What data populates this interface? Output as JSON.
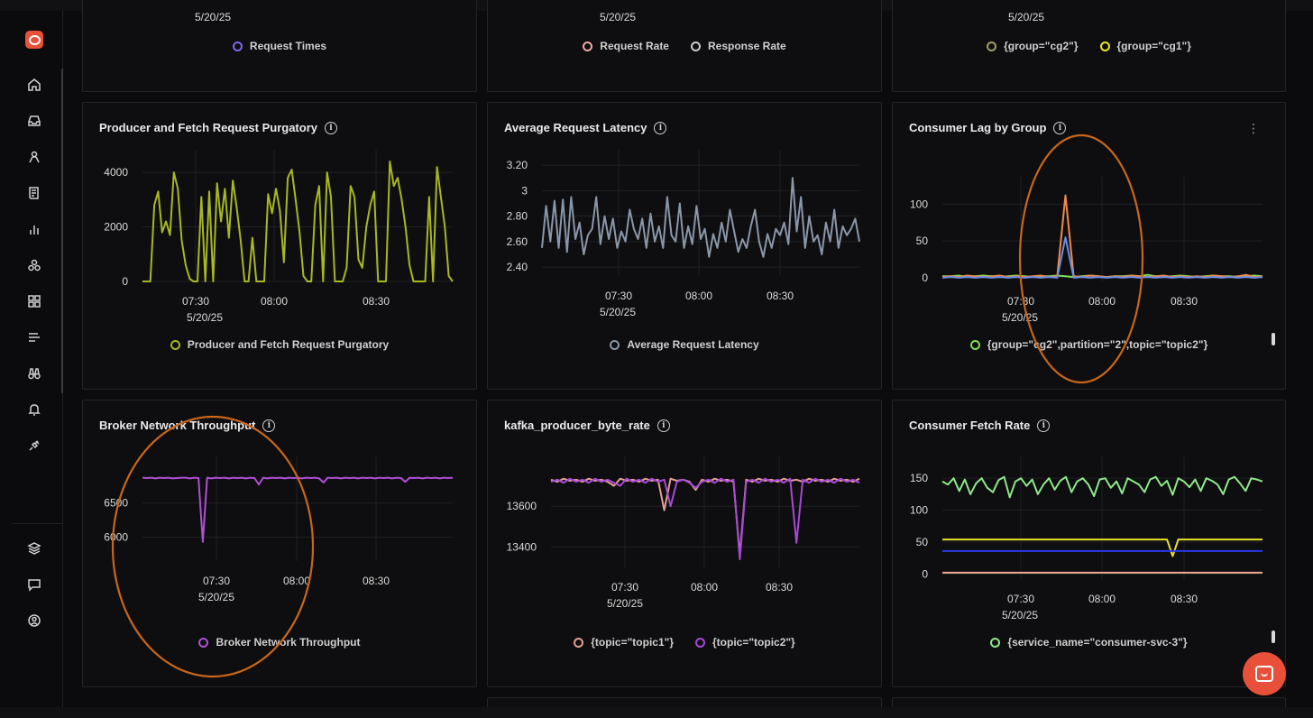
{
  "top_row": {
    "dates": [
      "5/20/25",
      "5/20/25",
      "5/20/25"
    ],
    "legends": [
      [
        {
          "label": "Request Times",
          "color": "#7b68ee"
        }
      ],
      [
        {
          "label": "Request Rate",
          "color": "#f2a9a0"
        },
        {
          "label": "Response Rate",
          "color": "#c9c9c9"
        }
      ],
      [
        {
          "label": "{group=\"cg2\"}",
          "color": "#a0a060"
        },
        {
          "label": "{group=\"cg1\"}",
          "color": "#e6e62a"
        }
      ]
    ]
  },
  "sidebar": {
    "icons": [
      "home-icon",
      "inbox-icon",
      "users-icon",
      "logs-icon",
      "bar-chart-icon",
      "services-icon",
      "dashboard-grid-icon",
      "list-icon",
      "binoculars-icon",
      "bell-alert-icon",
      "plug-icon",
      "layers-icon",
      "message-icon",
      "user-circle-icon"
    ]
  },
  "panels": [
    {
      "id": "purgatory",
      "title": "Producer and Fetch Request Purgatory",
      "date": "5/20/25",
      "legend": [
        {
          "label": "Producer and Fetch Request Purgatory",
          "color": "#a8b820"
        }
      ]
    },
    {
      "id": "latency",
      "title": "Average Request Latency",
      "date": "5/20/25",
      "legend": [
        {
          "label": "Average Request Latency",
          "color": "#8a97a8"
        }
      ]
    },
    {
      "id": "lag",
      "title": "Consumer Lag by Group",
      "date": "5/20/25",
      "legend": [
        {
          "label": "{group=\"cg2\",partition=\"2\",topic=\"topic2\"}",
          "color": "#7ee050"
        }
      ]
    },
    {
      "id": "broker",
      "title": "Broker Network Throughput",
      "date": "5/20/25",
      "legend": [
        {
          "label": "Broker Network Throughput",
          "color": "#b04fd6"
        }
      ]
    },
    {
      "id": "producer",
      "title": "kafka_producer_byte_rate",
      "date": "5/20/25",
      "legend": [
        {
          "label": "{topic=\"topic1\"}",
          "color": "#e0a090"
        },
        {
          "label": "{topic=\"topic2\"}",
          "color": "#a848d8"
        }
      ]
    },
    {
      "id": "fetch",
      "title": "Consumer Fetch Rate",
      "date": "5/20/25",
      "legend": [
        {
          "label": "{service_name=\"consumer-svc-3\"}",
          "color": "#8ee88a"
        }
      ]
    }
  ],
  "chart_data": [
    {
      "type": "line",
      "title": "Producer and Fetch Request Purgatory",
      "x_ticks": [
        "07:30",
        "08:00",
        "08:30"
      ],
      "x_date": "5/20/25",
      "y_ticks": [
        0,
        2000,
        4000
      ],
      "ylim": [
        0,
        4500
      ],
      "series": [
        {
          "name": "Producer and Fetch Request Purgatory",
          "color": "#a8b820",
          "values": [
            0,
            0,
            0,
            2800,
            3300,
            1800,
            2200,
            1700,
            4000,
            3400,
            1500,
            600,
            100,
            0,
            0,
            3100,
            0,
            3300,
            0,
            3600,
            2200,
            3400,
            1600,
            3700,
            2700,
            1500,
            0,
            0,
            1600,
            0,
            0,
            0,
            3200,
            2500,
            3400,
            2600,
            700,
            3800,
            4100,
            3000,
            1800,
            200,
            0,
            0,
            2800,
            3500,
            0,
            4000,
            3100,
            0,
            0,
            0,
            500,
            3500,
            3100,
            800,
            500,
            2000,
            2800,
            3300,
            0,
            0,
            0,
            4400,
            3500,
            3800,
            3000,
            2000,
            600,
            0,
            0,
            0,
            0,
            3100,
            0,
            4200,
            3100,
            2000,
            200,
            0
          ]
        }
      ]
    },
    {
      "type": "line",
      "title": "Average Request Latency",
      "x_ticks": [
        "07:30",
        "08:00",
        "08:30"
      ],
      "x_date": "5/20/25",
      "y_ticks": [
        2.4,
        2.6,
        2.8,
        3,
        3.2
      ],
      "y_tick_labels": [
        "2.40",
        "2.60",
        "2.80",
        "3",
        "3.20"
      ],
      "ylim": [
        2.33,
        3.25
      ],
      "series": [
        {
          "name": "Average Request Latency",
          "color": "#8a97a8",
          "values": [
            2.55,
            2.88,
            2.6,
            2.92,
            2.55,
            2.93,
            2.52,
            2.95,
            2.62,
            2.75,
            2.5,
            2.65,
            2.7,
            2.95,
            2.58,
            2.8,
            2.62,
            2.78,
            2.55,
            2.68,
            2.6,
            2.85,
            2.7,
            2.62,
            2.78,
            2.55,
            2.82,
            2.6,
            2.72,
            2.55,
            2.95,
            2.65,
            2.6,
            2.9,
            2.55,
            2.72,
            2.58,
            2.88,
            2.62,
            2.7,
            2.48,
            2.66,
            2.55,
            2.75,
            2.6,
            2.85,
            2.68,
            2.52,
            2.62,
            2.55,
            2.72,
            2.85,
            2.6,
            2.48,
            2.66,
            2.55,
            2.7,
            2.65,
            2.75,
            2.58,
            3.1,
            2.68,
            2.95,
            2.55,
            2.8,
            2.6,
            2.65,
            2.5,
            2.75,
            2.6,
            2.85,
            2.55,
            2.72,
            2.65,
            2.7,
            2.78,
            2.6
          ]
        }
      ]
    },
    {
      "type": "line",
      "title": "Consumer Lag by Group",
      "x_ticks": [
        "07:30",
        "08:00",
        "08:30"
      ],
      "x_date": "5/20/25",
      "y_ticks": [
        0,
        50,
        100
      ],
      "ylim": [
        -5,
        125
      ],
      "series": [
        {
          "name": "{group=\"cg2\",partition=\"2\",topic=\"topic2\"}",
          "color": "#7ee050",
          "values": [
            2,
            2,
            3,
            1,
            2,
            3,
            2,
            1,
            2,
            3,
            2,
            1,
            2,
            2,
            3,
            2,
            1,
            2,
            3,
            2,
            1,
            2,
            2,
            3,
            2,
            4,
            2,
            1,
            2,
            3,
            2,
            1,
            2,
            3,
            2,
            2,
            1,
            2,
            3,
            2
          ]
        },
        {
          "color": "#f08a4a",
          "values": [
            1,
            2,
            1,
            3,
            2,
            1,
            2,
            3,
            1,
            2,
            1,
            2,
            3,
            1,
            2,
            112,
            2,
            1,
            3,
            2,
            1,
            2,
            1,
            3,
            2,
            1,
            2,
            3,
            1,
            2,
            1,
            2,
            1,
            3,
            2,
            1,
            2,
            4,
            1,
            2
          ]
        },
        {
          "color": "#6a8ee6",
          "values": [
            0,
            1,
            0,
            1,
            0,
            1,
            0,
            1,
            0,
            1,
            0,
            1,
            0,
            1,
            0,
            55,
            0,
            1,
            0,
            1,
            0,
            1,
            0,
            1,
            0,
            1,
            0,
            1,
            0,
            1,
            0,
            1,
            0,
            1,
            0,
            1,
            0,
            1,
            0,
            1
          ]
        }
      ]
    },
    {
      "type": "line",
      "title": "Broker Network Throughput",
      "x_ticks": [
        "07:30",
        "08:00",
        "08:30"
      ],
      "x_date": "5/20/25",
      "y_ticks": [
        6000,
        6500
      ],
      "ylim": [
        5650,
        7050
      ],
      "series": [
        {
          "name": "Broker Network Throughput",
          "color": "#b04fd6",
          "values": [
            6870,
            6865,
            6870,
            6860,
            6870,
            6865,
            6870,
            6860,
            6865,
            6870,
            6870,
            6860,
            6870,
            6865,
            5930,
            6870,
            6860,
            6870,
            6865,
            6870,
            6860,
            6870,
            6865,
            6870,
            6860,
            6870,
            6865,
            6770,
            6870,
            6860,
            6870,
            6865,
            6870,
            6860,
            6870,
            6865,
            6870,
            6860,
            6870,
            6865,
            6870,
            6860,
            6800,
            6870,
            6865,
            6870,
            6860,
            6870,
            6865,
            6870,
            6860,
            6870,
            6865,
            6870,
            6860,
            6870,
            6865,
            6870,
            6860,
            6870,
            6865,
            6810,
            6870,
            6865,
            6870,
            6860,
            6870,
            6865,
            6870,
            6860,
            6870,
            6865,
            6870
          ]
        }
      ]
    },
    {
      "type": "line",
      "title": "kafka_producer_byte_rate",
      "x_ticks": [
        "07:30",
        "08:00",
        "08:30"
      ],
      "x_date": "5/20/25",
      "y_ticks": [
        13400,
        13600
      ],
      "ylim": [
        13300,
        13800
      ],
      "series": [
        {
          "name": "{topic=\"topic1\"}",
          "color": "#e0a090",
          "values": [
            13730,
            13720,
            13735,
            13725,
            13730,
            13720,
            13735,
            13725,
            13730,
            13720,
            13700,
            13735,
            13725,
            13730,
            13720,
            13735,
            13725,
            13730,
            13580,
            13735,
            13725,
            13730,
            13720,
            13680,
            13730,
            13720,
            13735,
            13725,
            13730,
            13720,
            13360,
            13730,
            13720,
            13735,
            13725,
            13730,
            13720,
            13735,
            13725,
            13730,
            13720,
            13735,
            13725,
            13730,
            13720,
            13735,
            13725,
            13730,
            13720,
            13735
          ]
        },
        {
          "name": "{topic=\"topic2\"}",
          "color": "#a848d8",
          "values": [
            13720,
            13730,
            13715,
            13735,
            13720,
            13730,
            13715,
            13735,
            13720,
            13730,
            13715,
            13700,
            13735,
            13720,
            13730,
            13715,
            13735,
            13720,
            13730,
            13600,
            13720,
            13730,
            13715,
            13690,
            13720,
            13730,
            13715,
            13735,
            13720,
            13730,
            13340,
            13720,
            13730,
            13715,
            13735,
            13720,
            13730,
            13715,
            13735,
            13420,
            13730,
            13715,
            13735,
            13720,
            13730,
            13715,
            13735,
            13720,
            13730,
            13715
          ]
        }
      ]
    },
    {
      "type": "line",
      "title": "Consumer Fetch Rate",
      "x_ticks": [
        "07:30",
        "08:00",
        "08:30"
      ],
      "x_date": "5/20/25",
      "y_ticks": [
        0,
        50,
        100,
        150
      ],
      "ylim": [
        -8,
        170
      ],
      "series": [
        {
          "name": "{service_name=\"consumer-svc-3\"}",
          "color": "#8ee88a",
          "values": [
            145,
            140,
            150,
            130,
            148,
            125,
            142,
            150,
            135,
            128,
            147,
            152,
            120,
            145,
            150,
            138,
            148,
            125,
            140,
            150,
            132,
            146,
            152,
            128,
            145,
            150,
            140,
            122,
            148,
            150,
            135,
            145,
            126,
            150,
            145,
            140,
            128,
            148,
            152,
            138,
            146,
            124,
            150,
            145,
            136,
            148,
            130,
            150,
            146,
            140,
            125,
            148,
            152,
            142,
            130,
            150,
            148,
            145
          ]
        },
        {
          "color": "#e8e02a",
          "values": [
            54,
            54,
            54,
            54,
            54,
            54,
            54,
            54,
            54,
            54,
            54,
            54,
            54,
            54,
            54,
            54,
            54,
            54,
            54,
            54,
            54,
            54,
            54,
            54,
            54,
            54,
            54,
            54,
            54,
            54,
            54,
            54,
            54,
            54,
            54,
            54,
            54,
            54,
            54,
            54,
            54,
            28,
            54,
            54,
            54,
            54,
            54,
            54,
            54,
            54,
            54,
            54,
            54,
            54,
            54,
            54,
            54,
            54
          ]
        },
        {
          "color": "#2a3ae8",
          "values": [
            36,
            36,
            36,
            36,
            36,
            36,
            36,
            36,
            36,
            36,
            36,
            36,
            36,
            36,
            36,
            36,
            36,
            36,
            36,
            36,
            36,
            36,
            36,
            36,
            36,
            36,
            36,
            36,
            36,
            36,
            36,
            36,
            36,
            36,
            36,
            36,
            36,
            36,
            36,
            36,
            36,
            36,
            36,
            36,
            36,
            36,
            36,
            36,
            36,
            36,
            36,
            36,
            36,
            36,
            36,
            36,
            36,
            36
          ]
        },
        {
          "color": "#f0a890",
          "values": [
            2,
            2,
            2,
            2,
            2,
            2,
            2,
            2,
            2,
            2,
            2,
            2,
            2,
            2,
            2,
            2,
            2,
            2,
            2,
            2,
            2,
            2,
            2,
            2,
            2,
            2,
            2,
            2,
            2,
            2,
            2,
            2,
            2,
            2,
            2,
            2,
            2,
            2,
            2,
            2,
            2,
            2,
            2,
            2,
            2,
            2,
            2,
            2,
            2,
            2,
            2,
            2,
            2,
            2,
            2,
            2,
            2,
            2
          ]
        }
      ]
    }
  ]
}
